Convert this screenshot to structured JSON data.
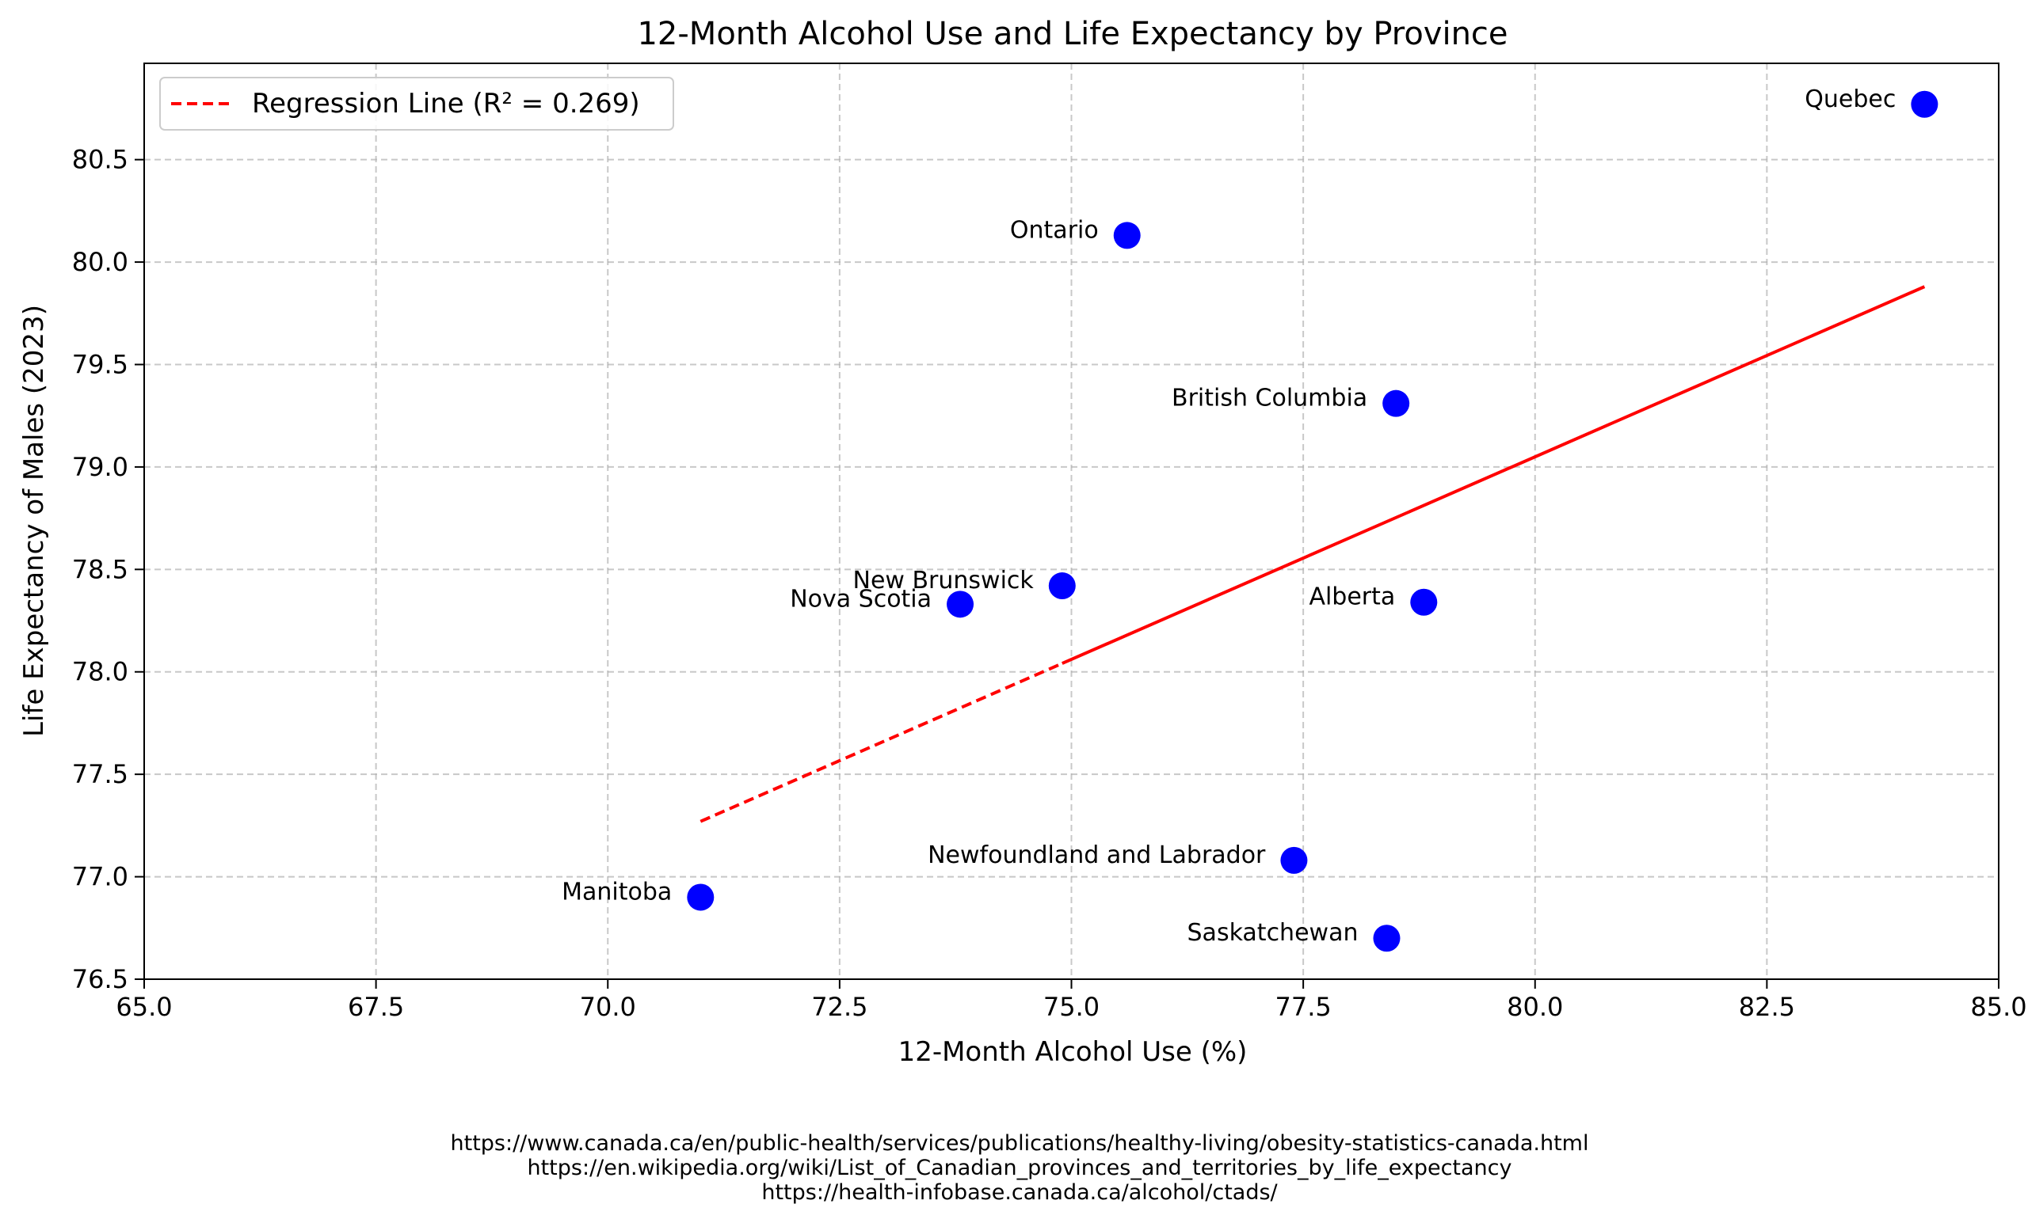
{
  "chart_data": {
    "type": "scatter",
    "title": "12-Month Alcohol Use and Life Expectancy by Province",
    "xlabel": "12-Month Alcohol Use (%)",
    "ylabel": "Life Expectancy of Males (2023)",
    "xlim": [
      65.0,
      85.0
    ],
    "ylim": [
      76.5,
      81.0
    ],
    "xticks": [
      "65.0",
      "67.5",
      "70.0",
      "72.5",
      "75.0",
      "77.5",
      "80.0",
      "82.5",
      "85.0"
    ],
    "xtick_values": [
      65.0,
      67.5,
      70.0,
      72.5,
      75.0,
      77.5,
      80.0,
      82.5,
      85.0
    ],
    "yticks": [
      "76.5",
      "77.0",
      "77.5",
      "78.0",
      "78.5",
      "79.0",
      "79.5",
      "80.0",
      "80.5"
    ],
    "ytick_values": [
      76.5,
      77.0,
      77.5,
      78.0,
      78.5,
      79.0,
      79.5,
      80.0,
      80.5
    ],
    "grid": true,
    "legend_position": "top-left",
    "point_color": "#0000ff",
    "line_color": "#ff0000",
    "points": [
      {
        "label": "Quebec",
        "x": 84.2,
        "y": 80.77
      },
      {
        "label": "Ontario",
        "x": 75.6,
        "y": 80.13
      },
      {
        "label": "British Columbia",
        "x": 78.5,
        "y": 79.31
      },
      {
        "label": "New Brunswick",
        "x": 74.9,
        "y": 78.42
      },
      {
        "label": "Nova Scotia",
        "x": 73.8,
        "y": 78.33
      },
      {
        "label": "Alberta",
        "x": 78.8,
        "y": 78.34
      },
      {
        "label": "Newfoundland and Labrador",
        "x": 77.4,
        "y": 77.08
      },
      {
        "label": "Manitoba",
        "x": 71.0,
        "y": 76.9
      },
      {
        "label": "Saskatchewan",
        "x": 78.4,
        "y": 76.7
      }
    ],
    "regression": {
      "label": "Regression Line (R² = 0.269)",
      "x": [
        71.0,
        84.2
      ],
      "y": [
        77.27,
        79.88
      ],
      "dashed_until_x": 74.9
    }
  },
  "sources": [
    "https://www.canada.ca/en/public-health/services/publications/healthy-living/obesity-statistics-canada.html",
    "https://en.wikipedia.org/wiki/List_of_Canadian_provinces_and_territories_by_life_expectancy",
    "https://health-infobase.canada.ca/alcohol/ctads/"
  ]
}
